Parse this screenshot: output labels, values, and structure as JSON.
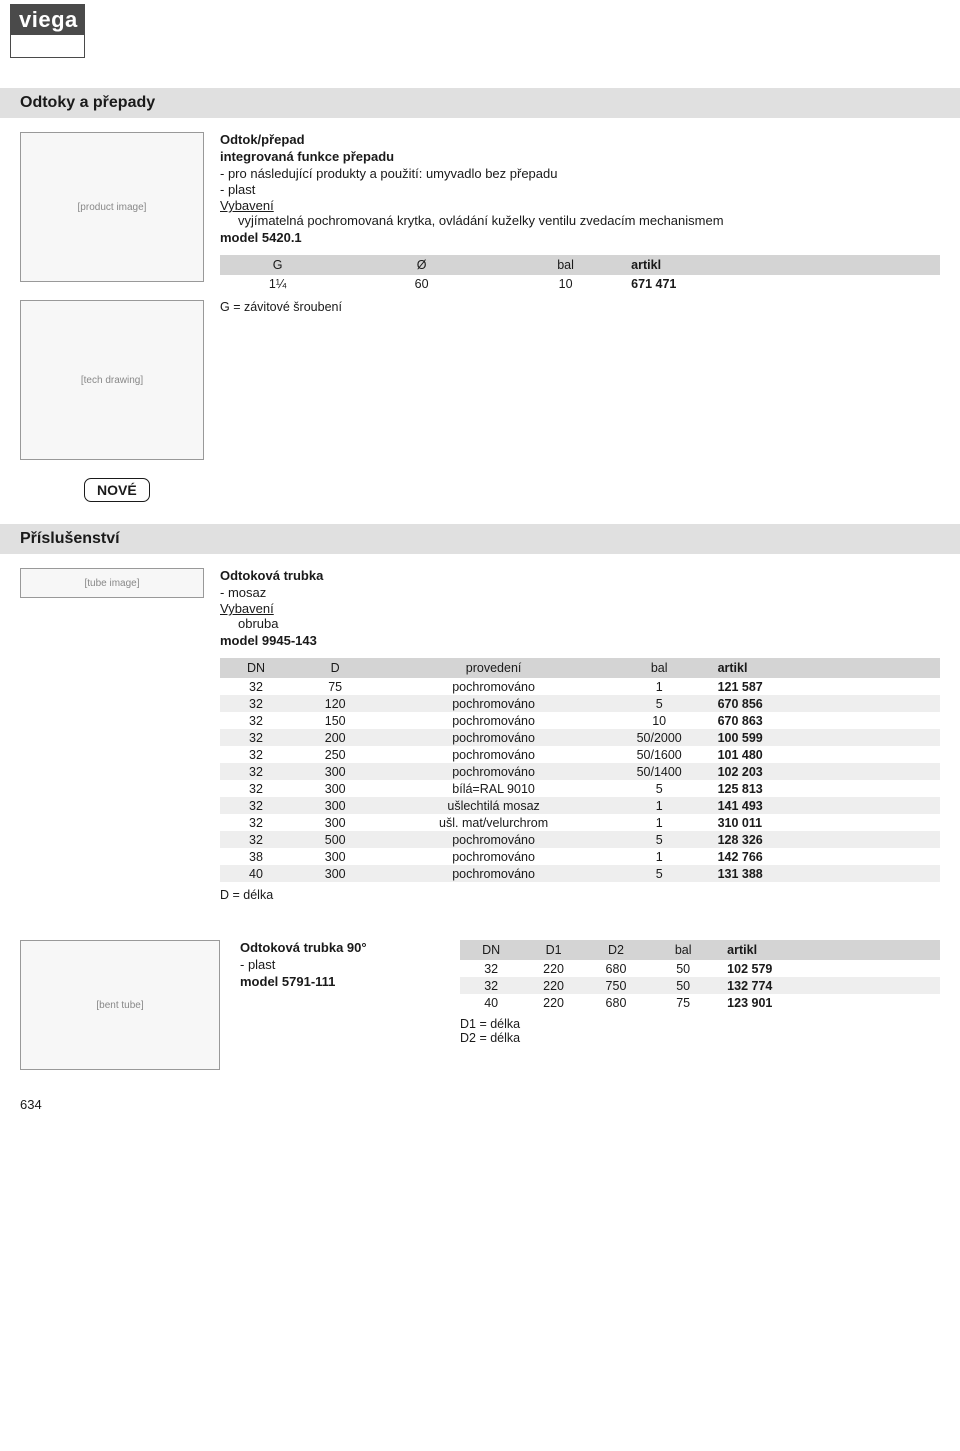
{
  "logo": {
    "text": "viega"
  },
  "page_number": "634",
  "section1": {
    "heading": "Odtoky a přepady",
    "product": {
      "title": "Odtok/přepad",
      "subtitle": "integrovaná funkce přepadu",
      "bullets": [
        "-  pro následující produkty a použití: umyvadlo bez přepadu",
        "-  plast"
      ],
      "equip_label": "Vybavení",
      "equip_details": "vyjímatelná pochromovaná krytka, ovládání kuželky ventilu zvedacím mechanismem",
      "model": "model 5420.1",
      "table": {
        "columns": [
          "G",
          "Ø",
          "bal",
          "artikl"
        ],
        "rows": [
          {
            "cells": [
              "1¼",
              "60",
              "10",
              "671 471"
            ]
          }
        ],
        "col_widths": [
          "16%",
          "24%",
          "16%",
          "18%",
          "26%"
        ],
        "header_bg": "#d4d4d4",
        "alt_bg": "#eeeeee"
      },
      "legend": "G = závitové šroubení",
      "image1_label": "[product image]",
      "image2_label": "[tech drawing]"
    },
    "badge": "NOVÉ"
  },
  "section2": {
    "heading": "Příslušenství",
    "product1": {
      "title": "Odtoková trubka",
      "bullets": [
        "-  mosaz"
      ],
      "equip_label": "Vybavení",
      "equip_details": "obruba",
      "model": "model 9945-143",
      "image_label": "[tube image]",
      "table": {
        "columns": [
          "DN",
          "D",
          "provedení",
          "bal",
          "artikl"
        ],
        "col_widths": [
          "10%",
          "12%",
          "32%",
          "14%",
          "16%",
          "16%"
        ],
        "header_bg": "#d4d4d4",
        "alt_bg": "#eeeeee",
        "rows": [
          {
            "cells": [
              "32",
              "75",
              "pochromováno",
              "1",
              "121 587"
            ]
          },
          {
            "cells": [
              "32",
              "120",
              "pochromováno",
              "5",
              "670 856"
            ]
          },
          {
            "cells": [
              "32",
              "150",
              "pochromováno",
              "10",
              "670 863"
            ]
          },
          {
            "cells": [
              "32",
              "200",
              "pochromováno",
              "50/2000",
              "100 599"
            ]
          },
          {
            "cells": [
              "32",
              "250",
              "pochromováno",
              "50/1600",
              "101 480"
            ]
          },
          {
            "cells": [
              "32",
              "300",
              "pochromováno",
              "50/1400",
              "102 203"
            ]
          },
          {
            "cells": [
              "32",
              "300",
              "bílá=RAL 9010",
              "5",
              "125 813"
            ]
          },
          {
            "cells": [
              "32",
              "300",
              "ušlechtilá mosaz",
              "1",
              "141 493"
            ]
          },
          {
            "cells": [
              "32",
              "300",
              "ušl. mat/velurchrom",
              "1",
              "310 011"
            ]
          },
          {
            "cells": [
              "32",
              "500",
              "pochromováno",
              "5",
              "128 326"
            ]
          },
          {
            "cells": [
              "38",
              "300",
              "pochromováno",
              "1",
              "142 766"
            ]
          },
          {
            "cells": [
              "40",
              "300",
              "pochromováno",
              "5",
              "131 388"
            ]
          }
        ]
      },
      "legend": "D = délka"
    },
    "product2": {
      "title": "Odtoková trubka 90°",
      "bullets": [
        "-  plast"
      ],
      "model": "model 5791-111",
      "image_label": "[bent tube]",
      "table": {
        "columns": [
          "DN",
          "D1",
          "D2",
          "bal",
          "artikl"
        ],
        "col_widths": [
          "13%",
          "13%",
          "13%",
          "15%",
          "22%",
          "24%"
        ],
        "header_bg": "#d4d4d4",
        "alt_bg": "#eeeeee",
        "rows": [
          {
            "cells": [
              "32",
              "220",
              "680",
              "50",
              "102 579"
            ]
          },
          {
            "cells": [
              "32",
              "220",
              "750",
              "50",
              "132 774"
            ]
          },
          {
            "cells": [
              "40",
              "220",
              "680",
              "75",
              "123 901"
            ]
          }
        ]
      },
      "legend1": "D1 = délka",
      "legend2": "D2 = délka"
    }
  }
}
